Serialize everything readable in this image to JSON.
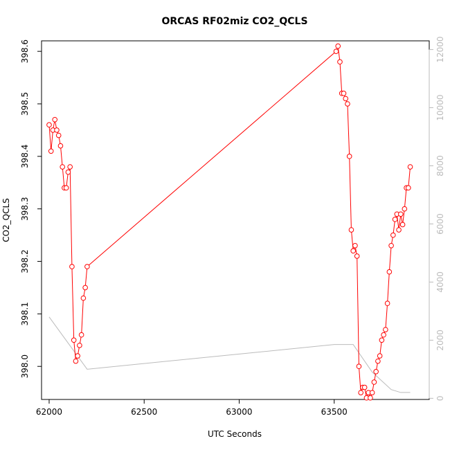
{
  "chart_data": {
    "type": "line",
    "title": "ORCAS RF02miz CO2_QCLS",
    "xlabel": "UTC Seconds",
    "ylabel": "CO2_QCLS",
    "xlim": [
      61960,
      64000
    ],
    "ylim": [
      397.937,
      398.62
    ],
    "xticks": [
      62000,
      62500,
      63000,
      63500
    ],
    "yticks": [
      398.0,
      398.1,
      398.2,
      398.3,
      398.4,
      398.5,
      398.6
    ],
    "y2lim": [
      -40,
      12300
    ],
    "y2ticks": [
      0,
      2000,
      4000,
      6000,
      8000,
      10000,
      12000
    ],
    "grid": false,
    "series": [
      {
        "color": "#ff0000",
        "marker": "circle-open",
        "axis": "left",
        "x": [
          62000,
          62010,
          62020,
          62030,
          62040,
          62050,
          62060,
          62070,
          62080,
          62090,
          62100,
          62110,
          62120,
          62130,
          62140,
          62150,
          62160,
          62170,
          62180,
          62190,
          62200,
          63510,
          63520,
          63530,
          63540,
          63550,
          63560,
          63570,
          63580,
          63590,
          63600,
          63610,
          63620,
          63630,
          63640,
          63650,
          63660,
          63670,
          63680,
          63690,
          63700,
          63710,
          63720,
          63730,
          63740,
          63750,
          63760,
          63770,
          63780,
          63790,
          63800,
          63810,
          63820,
          63830,
          63840,
          63850,
          63860,
          63870,
          63880,
          63890,
          63900
        ],
        "y": [
          398.46,
          398.41,
          398.45,
          398.47,
          398.45,
          398.44,
          398.42,
          398.38,
          398.34,
          398.34,
          398.37,
          398.38,
          398.19,
          398.05,
          398.01,
          398.02,
          398.04,
          398.06,
          398.13,
          398.15,
          398.19,
          398.6,
          398.61,
          398.58,
          398.52,
          398.52,
          398.51,
          398.5,
          398.4,
          398.26,
          398.22,
          398.23,
          398.21,
          398.0,
          397.95,
          397.96,
          397.96,
          397.94,
          397.95,
          397.94,
          397.95,
          397.97,
          397.99,
          398.01,
          398.02,
          398.05,
          398.06,
          398.07,
          398.12,
          398.18,
          398.23,
          398.25,
          398.28,
          398.29,
          398.26,
          398.29,
          398.27,
          398.3,
          398.34,
          398.34,
          398.38
        ]
      },
      {
        "color": "#bbbbbb",
        "marker": "none",
        "axis": "right",
        "x": [
          62000,
          62100,
          62200,
          63500,
          63600,
          63700,
          63800,
          63850,
          63900
        ],
        "y": [
          2800,
          1900,
          1000,
          1850,
          1850,
          900,
          300,
          200,
          200
        ]
      }
    ]
  }
}
